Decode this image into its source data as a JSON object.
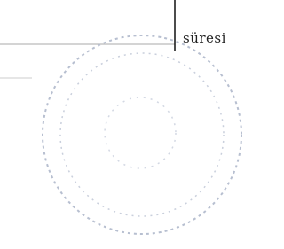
{
  "table": {
    "cell": "süresi"
  }
}
